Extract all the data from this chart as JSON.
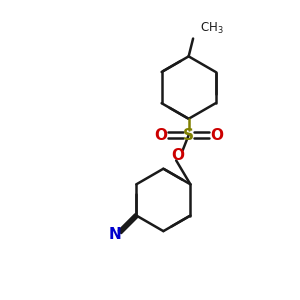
{
  "background_color": "#ffffff",
  "bond_color": "#1a1a1a",
  "sulfur_color": "#808000",
  "oxygen_color": "#cc0000",
  "nitrogen_color": "#0000cc",
  "bond_width": 1.8,
  "figsize": [
    3.0,
    3.0
  ],
  "dpi": 100,
  "xlim": [
    0,
    10
  ],
  "ylim": [
    0,
    10
  ]
}
